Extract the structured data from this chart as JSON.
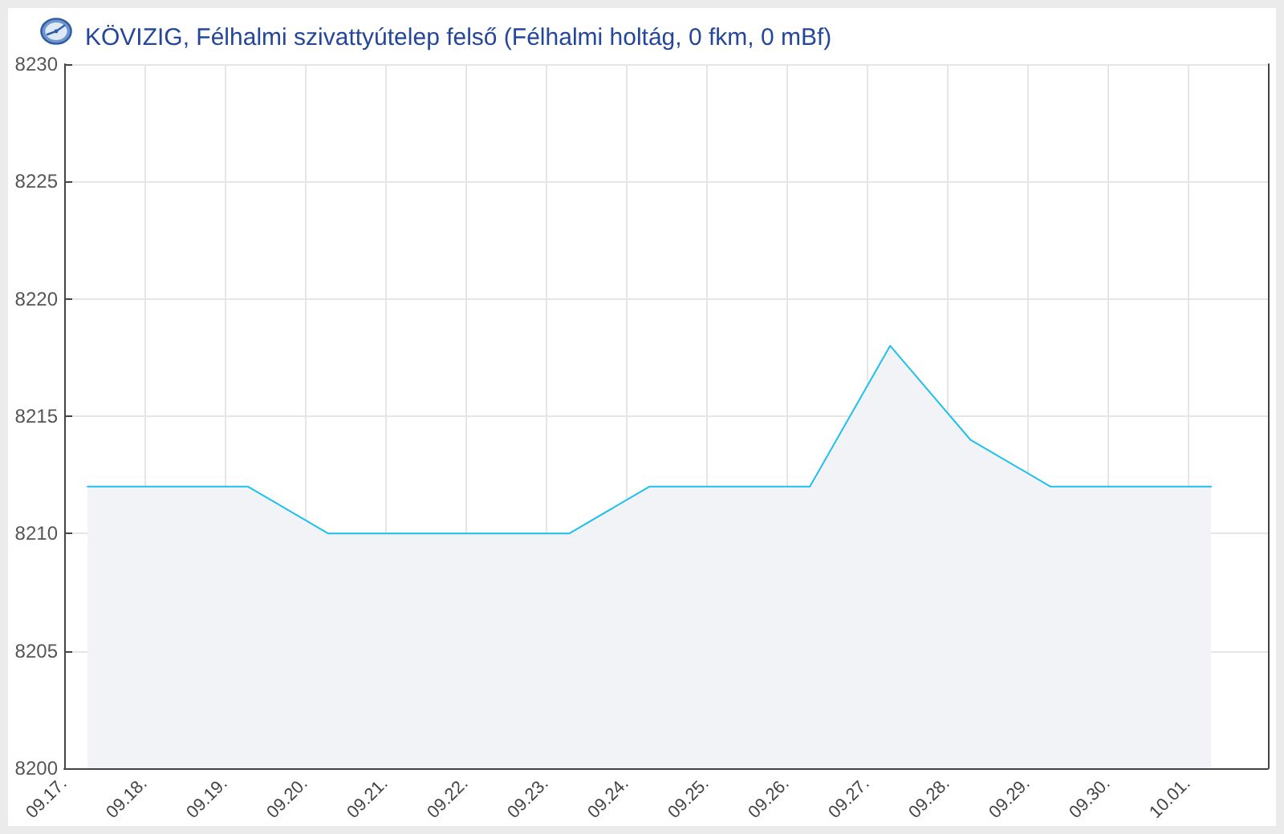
{
  "chart_data": {
    "type": "area",
    "title": "KÖVIZIG, Félhalmi szivattyútelep felső (Félhalmi holtág, 0 fkm, 0 mBf)",
    "x": [
      "--09-17T07:00",
      "--09-18T07:00",
      "--09-19T07:00",
      "--09-20T07:00",
      "--09-21T07:00",
      "--09-22T07:00",
      "--09-23T07:00",
      "--09-24T07:00",
      "--09-25T07:00",
      "--09-26T07:00",
      "--09-27T07:00",
      "--09-28T07:00",
      "--09-29T07:00",
      "--09-30T07:00",
      "--10-01T07:00"
    ],
    "values": [
      8212,
      8212,
      8212,
      8210,
      8210,
      8210,
      8210,
      8212,
      8212,
      8212,
      8218,
      8214,
      8212,
      8212,
      8212
    ],
    "color": "#1ec0ee",
    "xlim": [
      "--09-17",
      "--10-02"
    ],
    "xticks": [
      {
        "value": "--09-17",
        "label": "09.17."
      },
      {
        "value": "--09-18",
        "label": "09.18."
      },
      {
        "value": "--09-19",
        "label": "09.19."
      },
      {
        "value": "--09-20",
        "label": "09.20."
      },
      {
        "value": "--09-21",
        "label": "09.21."
      },
      {
        "value": "--09-22",
        "label": "09.22."
      },
      {
        "value": "--09-23",
        "label": "09.23."
      },
      {
        "value": "--09-24",
        "label": "09.24."
      },
      {
        "value": "--09-25",
        "label": "09.25."
      },
      {
        "value": "--09-26",
        "label": "09.26."
      },
      {
        "value": "--09-27",
        "label": "09.27."
      },
      {
        "value": "--09-28",
        "label": "09.28."
      },
      {
        "value": "--09-29",
        "label": "09.29."
      },
      {
        "value": "--09-30",
        "label": "09.30."
      },
      {
        "value": "--10-01",
        "label": "10.01."
      }
    ],
    "ylim": [
      8200,
      8230
    ],
    "yticks": [
      8200,
      8205,
      8210,
      8215,
      8220,
      8225,
      8230
    ],
    "grid": true,
    "marker": "none"
  }
}
